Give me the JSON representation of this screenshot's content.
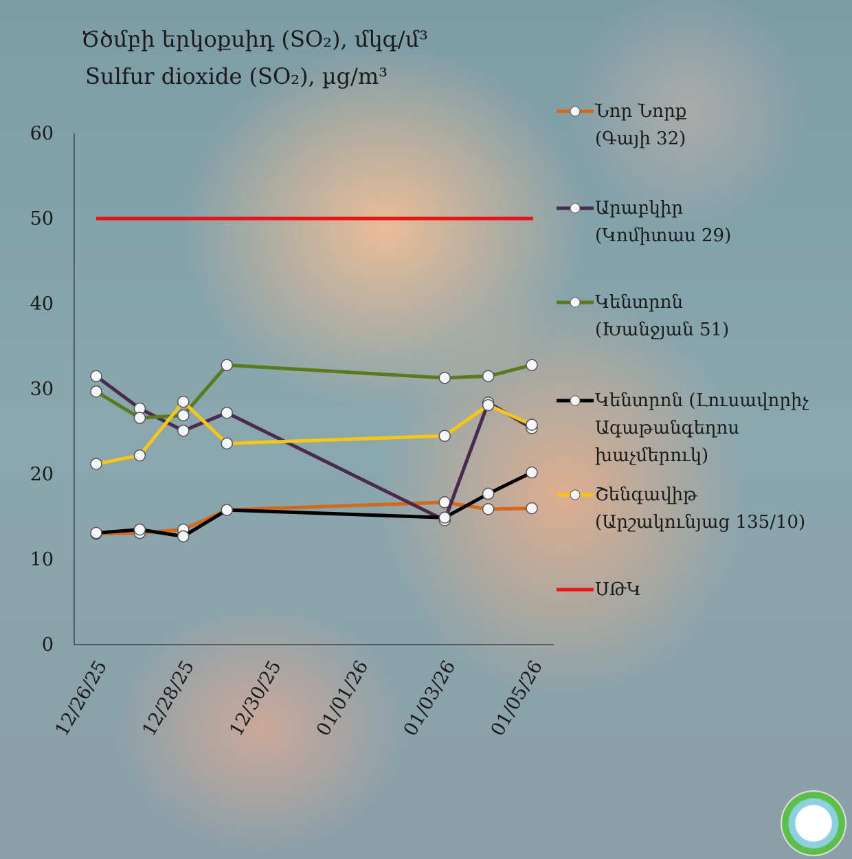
{
  "chart_data": {
    "type": "line",
    "title": "Ծծմբի երկօքսիդ (SO₂), մկգ/մ³",
    "subtitle": "Sulfur dioxide (SO₂), µg/m³",
    "xlabel": "",
    "ylabel": "",
    "ylim": [
      0,
      60
    ],
    "yticks": [
      "0",
      "10",
      "20",
      "30",
      "40",
      "50",
      "60"
    ],
    "xticks": [
      "12/26/25",
      "12/28/25",
      "12/30/25",
      "01/01/26",
      "01/03/26",
      "01/05/26"
    ],
    "x": [
      "12/26/25",
      "12/27/25",
      "12/28/25",
      "12/29/25",
      "01/03/26",
      "01/04/26",
      "01/05/26"
    ],
    "grid": false,
    "legend_placement": "right",
    "series": [
      {
        "name": "Նոր Նորք\n(Գայի 32)",
        "color": "#d2691e",
        "values": [
          13.0,
          13.1,
          13.5,
          15.8,
          16.7,
          15.9,
          16.0
        ]
      },
      {
        "name": "Արաբկիր\n(Կոմիտաս 29)",
        "color": "#4a2a4f",
        "values": [
          31.5,
          27.7,
          25.1,
          27.2,
          14.6,
          28.4,
          25.4
        ]
      },
      {
        "name": "Կենտրոն\n(Խանջյան 51)",
        "color": "#5b7a1e",
        "values": [
          29.7,
          26.6,
          26.9,
          32.8,
          31.3,
          31.5,
          32.8
        ]
      },
      {
        "name": "Կենտրոն (Լուսավորիչ\nԱգաթանգեղոս\nխաչմերուկ)",
        "color": "#000000",
        "values": [
          13.1,
          13.5,
          12.7,
          15.8,
          14.9,
          17.7,
          20.2
        ]
      },
      {
        "name": "Շենգավիթ\n(Արշակունյաց 135/10)",
        "color": "#f5c518",
        "values": [
          21.2,
          22.2,
          28.5,
          23.6,
          24.5,
          28.1,
          25.8
        ]
      },
      {
        "name": "ՍԹԿ",
        "color": "#e8141a",
        "constant": 50
      }
    ]
  }
}
